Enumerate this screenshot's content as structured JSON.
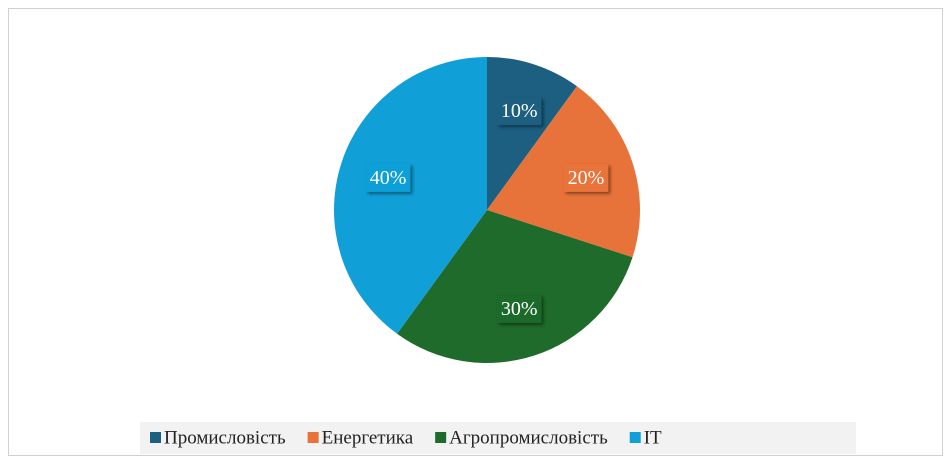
{
  "chart_data": {
    "type": "pie",
    "categories": [
      "Промисловість",
      "Енергетика",
      "Агропромисловість",
      "IT"
    ],
    "values": [
      10,
      20,
      30,
      40
    ],
    "value_labels": [
      "10%",
      "20%",
      "30%",
      "40%"
    ],
    "colors": [
      "#1c5f80",
      "#e8733a",
      "#1f6b2b",
      "#119fd7"
    ],
    "legend": "bottom"
  }
}
